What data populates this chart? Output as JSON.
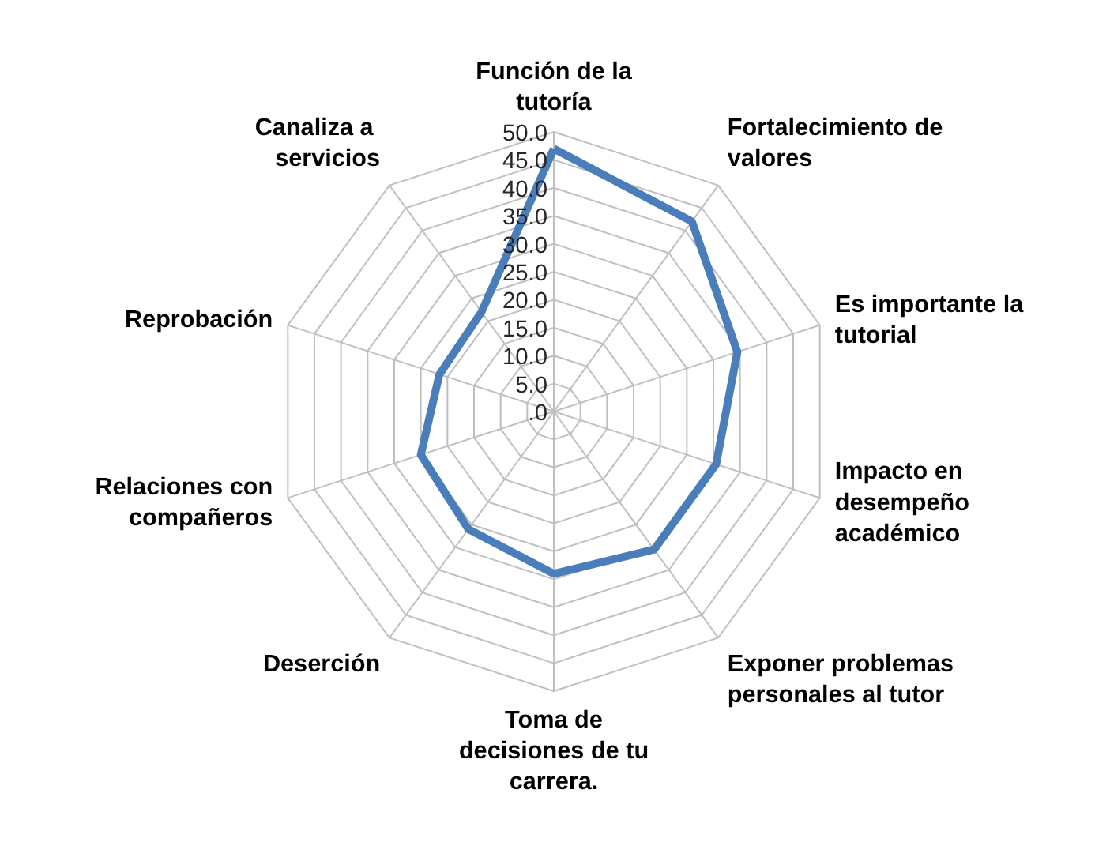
{
  "chart_data": {
    "type": "radar",
    "categories": [
      "Función de la\ntutoría",
      "Fortalecimiento de\nvalores",
      "Es importante la\ntutorial",
      "Impacto en\ndesempeño\nacadémico",
      "Exponer problemas\npersonales al tutor",
      "Toma de\ndecisiones de tu\ncarrera.",
      "Deserción",
      "Relaciones con\ncompañeros",
      "Reprobación",
      "Canaliza  a\nservicios"
    ],
    "series": [
      {
        "color": "#4a7ebb",
        "values": [
          47,
          42,
          34.5,
          30.5,
          30.5,
          29,
          26,
          25,
          21.5,
          22
        ]
      }
    ],
    "ylim": [
      0,
      50
    ],
    "yticks": [
      {
        "value": 0,
        "label": ".0"
      },
      {
        "value": 5,
        "label": "5.0"
      },
      {
        "value": 10,
        "label": "10.0"
      },
      {
        "value": 15,
        "label": "15.0"
      },
      {
        "value": 20,
        "label": "20.0"
      },
      {
        "value": 25,
        "label": "25.0"
      },
      {
        "value": 30,
        "label": "30.0"
      },
      {
        "value": 35,
        "label": "35.0"
      },
      {
        "value": 40,
        "label": "40.0"
      },
      {
        "value": 45,
        "label": "45.0"
      },
      {
        "value": 50,
        "label": "50.0"
      }
    ],
    "grid": true,
    "marker": "none",
    "line_style": "solid"
  }
}
